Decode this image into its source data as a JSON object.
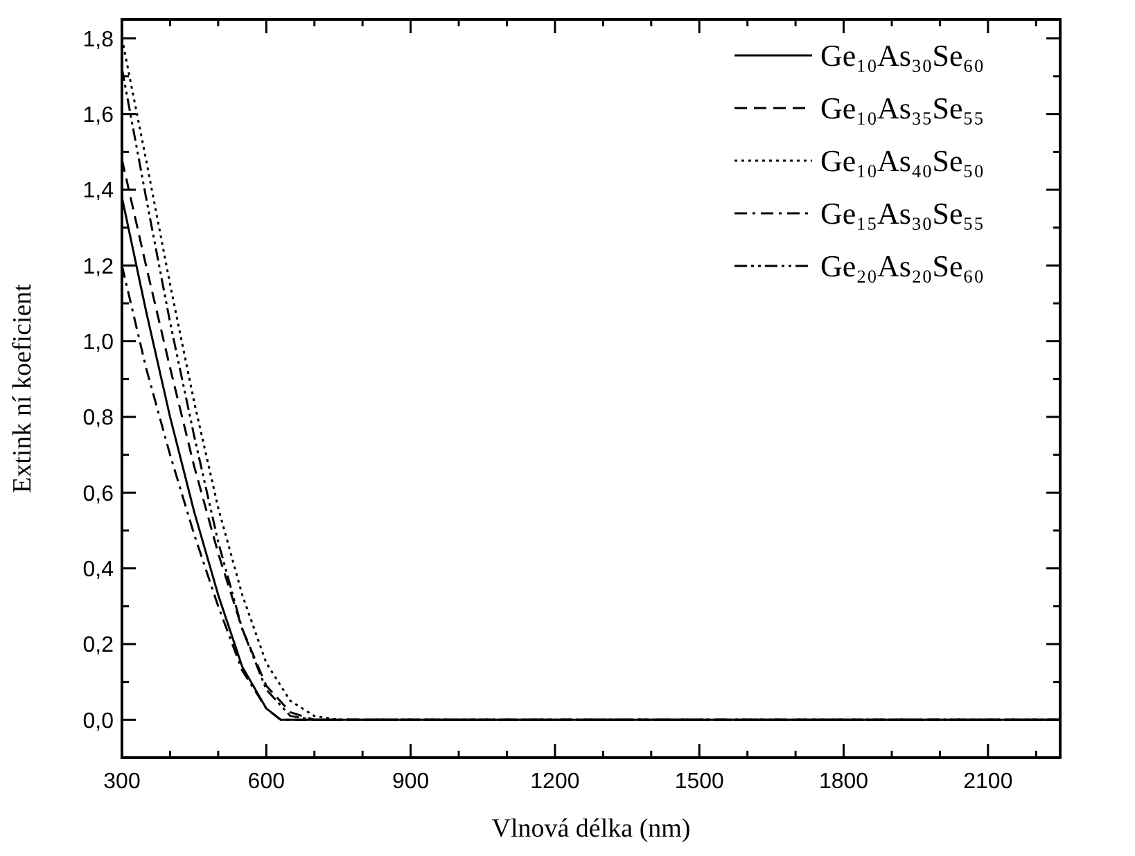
{
  "chart_data": {
    "type": "line",
    "xlabel": "Vlnová délka (nm)",
    "ylabel": "Extink  ní koeficient",
    "xlim": [
      300,
      2250
    ],
    "ylim": [
      -0.1,
      1.85
    ],
    "xticks": [
      300,
      {
        "value": 400,
        "label": null
      },
      {
        "value": 500,
        "label": null
      },
      600,
      {
        "value": 700,
        "label": null
      },
      {
        "value": 800,
        "label": null
      },
      900,
      {
        "value": 1000,
        "label": null
      },
      {
        "value": 1100,
        "label": null
      },
      1200,
      {
        "value": 1300,
        "label": null
      },
      {
        "value": 1400,
        "label": null
      },
      1500,
      {
        "value": 1600,
        "label": null
      },
      {
        "value": 1700,
        "label": null
      },
      1800,
      {
        "value": 1900,
        "label": null
      },
      {
        "value": 2000,
        "label": null
      },
      2100,
      {
        "value": 2200,
        "label": null
      }
    ],
    "yticks": [
      {
        "value": -0.1,
        "label": null
      },
      {
        "value": 0,
        "label": "0,0"
      },
      {
        "value": 0.1,
        "label": null
      },
      {
        "value": 0.2,
        "label": "0,2"
      },
      {
        "value": 0.3,
        "label": null
      },
      {
        "value": 0.4,
        "label": "0,4"
      },
      {
        "value": 0.5,
        "label": null
      },
      {
        "value": 0.6,
        "label": "0,6"
      },
      {
        "value": 0.7,
        "label": null
      },
      {
        "value": 0.8,
        "label": "0,8"
      },
      {
        "value": 0.9,
        "label": null
      },
      {
        "value": 1,
        "label": "1,0"
      },
      {
        "value": 1.1,
        "label": null
      },
      {
        "value": 1.2,
        "label": "1,2"
      },
      {
        "value": 1.3,
        "label": null
      },
      {
        "value": 1.4,
        "label": "1,4"
      },
      {
        "value": 1.5,
        "label": null
      },
      {
        "value": 1.6,
        "label": "1,6"
      },
      {
        "value": 1.7,
        "label": null
      },
      {
        "value": 1.8,
        "label": "1,8"
      }
    ],
    "grid": false,
    "legend": "top right",
    "marker": "none",
    "series": [
      {
        "name": "Ge₁₀As₃₀Se₆₀",
        "color": "#000000",
        "line_style": "solid",
        "x": [
          300,
          350,
          400,
          450,
          500,
          550,
          600,
          630,
          700,
          2250
        ],
        "values": [
          1.38,
          1.08,
          0.8,
          0.55,
          0.33,
          0.14,
          0.03,
          0,
          0,
          0
        ]
      },
      {
        "name": "Ge₁₀As₃₅Se₅₅",
        "color": "#000000",
        "line_style": "dashed",
        "x": [
          300,
          350,
          400,
          450,
          500,
          550,
          600,
          650,
          700,
          2250
        ],
        "values": [
          1.48,
          1.2,
          0.93,
          0.67,
          0.44,
          0.24,
          0.09,
          0.02,
          0,
          0
        ]
      },
      {
        "name": "Ge₁₀As₄₀Se₅₀",
        "color": "#000000",
        "line_style": "dotted",
        "x": [
          300,
          350,
          400,
          450,
          500,
          550,
          600,
          650,
          700,
          750,
          2250
        ],
        "values": [
          1.8,
          1.48,
          1.15,
          0.84,
          0.56,
          0.33,
          0.15,
          0.05,
          0.01,
          0,
          0
        ]
      },
      {
        "name": "Ge₁₅As₃₀Se₅₅",
        "color": "#000000",
        "line_style": "dashdot",
        "x": [
          300,
          350,
          400,
          450,
          500,
          550,
          600,
          630,
          2250
        ],
        "values": [
          1.2,
          0.93,
          0.7,
          0.49,
          0.3,
          0.13,
          0.03,
          0,
          0
        ]
      },
      {
        "name": "Ge₂₀As₂₀Se₆₀",
        "color": "#000000",
        "line_style": "dashdotdot",
        "x": [
          300,
          350,
          400,
          450,
          500,
          550,
          600,
          650,
          700,
          2250
        ],
        "values": [
          1.72,
          1.38,
          1.05,
          0.75,
          0.47,
          0.24,
          0.08,
          0.01,
          0,
          0
        ]
      }
    ]
  }
}
